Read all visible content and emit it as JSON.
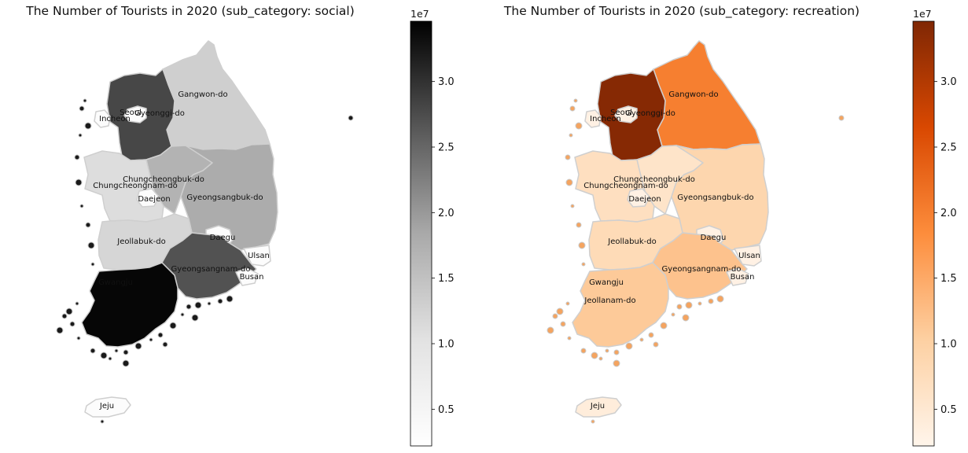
{
  "figure": {
    "panels": [
      {
        "title": "The Number of Tourists in 2020 (sub_category: social)",
        "colormap": "Greys",
        "colorbar_exponent": "1e7",
        "colorbar_ticks": [
          "0.5",
          "1.0",
          "1.5",
          "2.0",
          "2.5",
          "3.0"
        ]
      },
      {
        "title": "The Number of Tourists in 2020 (sub_category: recreation)",
        "colormap": "Oranges",
        "colorbar_exponent": "1e7",
        "colorbar_ticks": [
          "0.5",
          "1.0",
          "1.5",
          "2.0",
          "2.5",
          "3.0"
        ]
      }
    ]
  },
  "chart_data": [
    {
      "type": "choropleth",
      "title": "The Number of Tourists in 2020 (sub_category: social)",
      "colormap": "Greys",
      "color_range": [
        2200000,
        34600000
      ],
      "colorbar_label": "1e7",
      "ticks": [
        0.5,
        1.0,
        1.5,
        2.0,
        2.5,
        3.0
      ],
      "regions": [
        {
          "name": "Gangwon-do",
          "value": 13000000
        },
        {
          "name": "Gyeonggi-do",
          "value": 28000000
        },
        {
          "name": "Seoul",
          "value": 3000000
        },
        {
          "name": "Incheon",
          "value": 3000000
        },
        {
          "name": "Chungcheongbuk-do",
          "value": 17000000
        },
        {
          "name": "Chungcheongnam-do",
          "value": 11000000
        },
        {
          "name": "Daejeon",
          "value": 3000000
        },
        {
          "name": "Gyeongsangbuk-do",
          "value": 18000000
        },
        {
          "name": "Daegu",
          "value": 3000000
        },
        {
          "name": "Jeollabuk-do",
          "value": 12000000
        },
        {
          "name": "Ulsan",
          "value": 3000000
        },
        {
          "name": "Gyeongsangnam-do",
          "value": 27000000
        },
        {
          "name": "Busan",
          "value": 3000000
        },
        {
          "name": "Gwangju",
          "value": 3000000
        },
        {
          "name": "Jeollanam-do",
          "value": 34000000
        },
        {
          "name": "Jeju",
          "value": 3000000
        }
      ]
    },
    {
      "type": "choropleth",
      "title": "The Number of Tourists in 2020 (sub_category: recreation)",
      "colormap": "Oranges",
      "color_range": [
        2200000,
        34600000
      ],
      "colorbar_label": "1e7",
      "ticks": [
        0.5,
        1.0,
        1.5,
        2.0,
        2.5,
        3.0
      ],
      "regions": [
        {
          "name": "Gangwon-do",
          "value": 20000000
        },
        {
          "name": "Gyeonggi-do",
          "value": 34000000
        },
        {
          "name": "Seoul",
          "value": 3000000
        },
        {
          "name": "Incheon",
          "value": 3000000
        },
        {
          "name": "Chungcheongbuk-do",
          "value": 6000000
        },
        {
          "name": "Chungcheongnam-do",
          "value": 7000000
        },
        {
          "name": "Daejeon",
          "value": 3000000
        },
        {
          "name": "Gyeongsangbuk-do",
          "value": 9000000
        },
        {
          "name": "Daegu",
          "value": 3000000
        },
        {
          "name": "Jeollabuk-do",
          "value": 8000000
        },
        {
          "name": "Ulsan",
          "value": 3000000
        },
        {
          "name": "Gyeongsangnam-do",
          "value": 12000000
        },
        {
          "name": "Busan",
          "value": 3000000
        },
        {
          "name": "Gwangju",
          "value": 10000000
        },
        {
          "name": "Jeollanam-do",
          "value": 11000000
        },
        {
          "name": "Jeju",
          "value": 4000000
        }
      ]
    }
  ]
}
